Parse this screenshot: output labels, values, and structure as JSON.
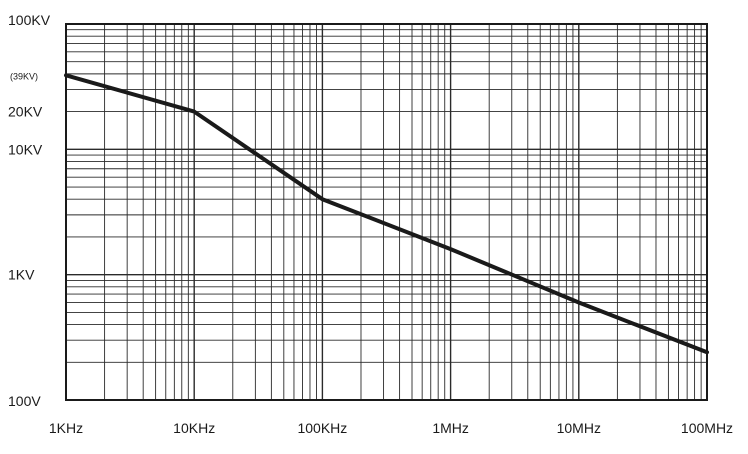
{
  "chart_data": {
    "type": "line",
    "title": "",
    "xlabel": "",
    "ylabel": "",
    "x_scale": "log",
    "y_scale": "log",
    "xlim": [
      1000,
      100000000
    ],
    "ylim": [
      100,
      100000
    ],
    "grid": true,
    "x_tick_labels": [
      {
        "value": 1000,
        "label": "1KHz"
      },
      {
        "value": 10000,
        "label": "10KHz"
      },
      {
        "value": 100000,
        "label": "100KHz"
      },
      {
        "value": 1000000,
        "label": "1MHz"
      },
      {
        "value": 10000000,
        "label": "10MHz"
      },
      {
        "value": 100000000,
        "label": "100MHz"
      }
    ],
    "y_tick_labels": [
      {
        "value": 100000,
        "label": "100KV",
        "note": false
      },
      {
        "value": 39000,
        "label": "(39KV)",
        "note": true
      },
      {
        "value": 20000,
        "label": "20KV",
        "note": false
      },
      {
        "value": 10000,
        "label": "10KV",
        "note": false
      },
      {
        "value": 1000,
        "label": "1KV",
        "note": false
      },
      {
        "value": 100,
        "label": "100V",
        "note": false
      }
    ],
    "series": [
      {
        "color": "#1a1a1a",
        "points": [
          {
            "x": 1000,
            "y": 39000
          },
          {
            "x": 10000,
            "y": 20000
          },
          {
            "x": 100000,
            "y": 4000
          },
          {
            "x": 1000000,
            "y": 1600
          },
          {
            "x": 10000000,
            "y": 600
          },
          {
            "x": 100000000,
            "y": 240
          }
        ]
      }
    ]
  }
}
